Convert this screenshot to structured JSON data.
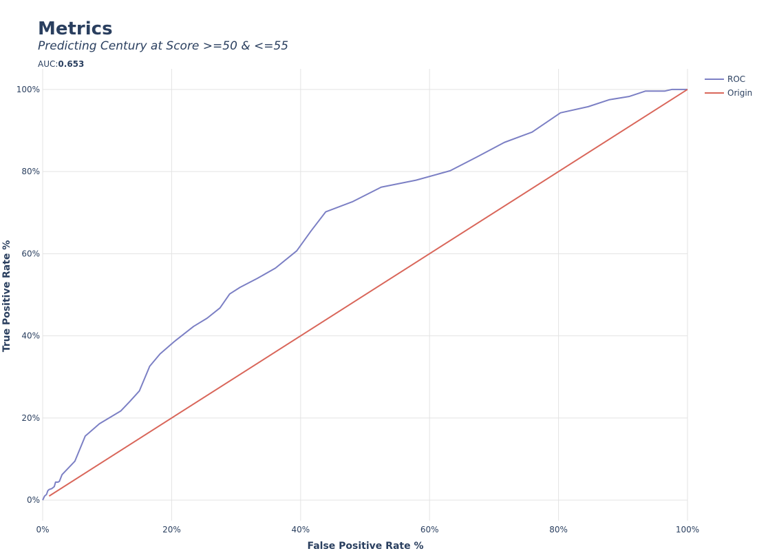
{
  "chart_data": {
    "type": "line",
    "title": "Metrics",
    "subtitle": "Predicting Century at Score >=50 & <=55",
    "annotation": {
      "label": "AUC:",
      "value": "0.653"
    },
    "xlabel": "False Positive Rate %",
    "ylabel": "True Positive Rate %",
    "xlim": [
      0,
      100
    ],
    "ylim": [
      -5,
      105
    ],
    "xticks": [
      0,
      20,
      40,
      60,
      80,
      100
    ],
    "xtick_labels": [
      "0%",
      "20%",
      "40%",
      "60%",
      "80%",
      "100%"
    ],
    "yticks": [
      0,
      20,
      40,
      60,
      80,
      100
    ],
    "ytick_labels": [
      "0%",
      "20%",
      "40%",
      "60%",
      "80%",
      "100%"
    ],
    "grid": true,
    "legend_position": "top-right",
    "series": [
      {
        "name": "ROC",
        "color": "#7b7fc4",
        "x": [
          0,
          0.3,
          0.6,
          0.8,
          1.0,
          1.4,
          1.8,
          2.0,
          2.4,
          2.6,
          3.0,
          5.0,
          6.6,
          8.8,
          12.1,
          13.5,
          15.0,
          16.6,
          18.2,
          20.4,
          23.4,
          25.5,
          27.5,
          29.0,
          30.6,
          33.3,
          36.1,
          39.4,
          41.6,
          43.9,
          48.1,
          52.5,
          57.9,
          63.2,
          67.4,
          71.6,
          75.9,
          80.3,
          84.6,
          87.9,
          91.0,
          93.5,
          96.5,
          97.6,
          100.0
        ],
        "y": [
          0,
          1.0,
          1.4,
          2.3,
          2.6,
          2.8,
          3.3,
          4.4,
          4.4,
          4.6,
          6.2,
          9.5,
          15.6,
          18.6,
          21.7,
          24.0,
          26.6,
          32.6,
          35.6,
          38.6,
          42.3,
          44.3,
          46.8,
          50.2,
          51.8,
          54.0,
          56.5,
          60.7,
          65.5,
          70.2,
          72.7,
          76.2,
          77.9,
          80.2,
          83.6,
          87.1,
          89.6,
          94.3,
          95.8,
          97.5,
          98.3,
          99.6,
          99.6,
          100.0,
          100.0
        ]
      },
      {
        "name": "Origin",
        "color": "#d9665a",
        "x": [
          1.0,
          100.0
        ],
        "y": [
          1.0,
          100.0
        ]
      }
    ]
  }
}
